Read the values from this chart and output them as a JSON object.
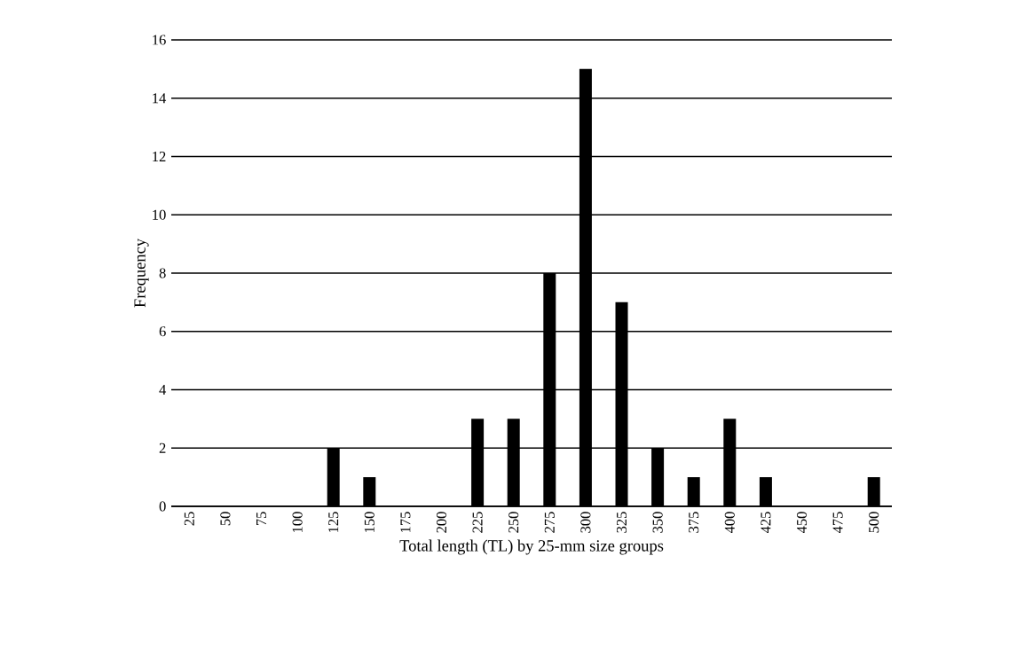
{
  "chart_data": {
    "type": "bar",
    "xlabel": "Total length (TL) by 25-mm size groups",
    "ylabel": "Frequency",
    "categories": [
      "25",
      "50",
      "75",
      "100",
      "125",
      "150",
      "175",
      "200",
      "225",
      "250",
      "275",
      "300",
      "325",
      "350",
      "375",
      "400",
      "425",
      "450",
      "475",
      "500"
    ],
    "values": [
      0,
      0,
      0,
      0,
      2,
      1,
      0,
      0,
      3,
      3,
      8,
      15,
      7,
      2,
      1,
      3,
      1,
      0,
      0,
      1
    ],
    "color": "#000000",
    "ylim": [
      0,
      16
    ],
    "yticks": [
      0,
      2,
      4,
      6,
      8,
      10,
      12,
      14,
      16
    ],
    "grid": "y"
  }
}
